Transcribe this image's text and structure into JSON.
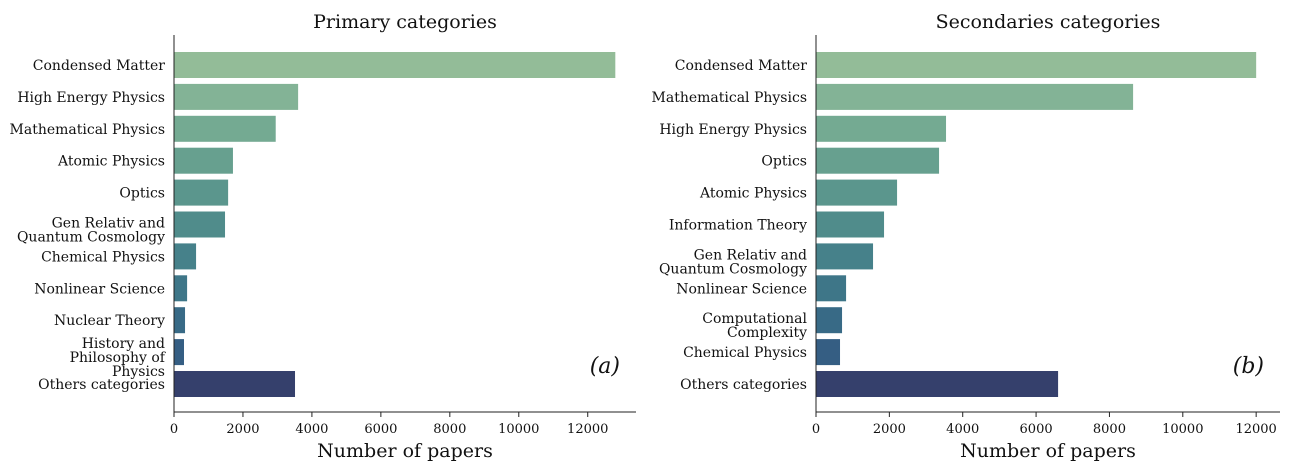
{
  "chart_data": [
    {
      "type": "barh",
      "title": "Primary categories",
      "xlabel": "Number of papers",
      "annotation": "(a)",
      "categories": [
        "Condensed Matter",
        "High Energy Physics",
        "Mathematical Physics",
        "Atomic Physics",
        "Optics",
        "Gen Relativ and\nQuantum Cosmology",
        "Chemical Physics",
        "Nonlinear Science",
        "Nuclear Theory",
        "History and\nPhilosophy of\nPhysics",
        "Others categories"
      ],
      "values": [
        12800,
        3600,
        2950,
        1710,
        1570,
        1480,
        640,
        380,
        320,
        290,
        3510
      ],
      "colors": [
        "#93bc98",
        "#83b396",
        "#74aa92",
        "#67a08f",
        "#5b968d",
        "#508c8b",
        "#46818a",
        "#3e7688",
        "#386a86",
        "#355e83",
        "#35406c"
      ],
      "xlim": [
        0,
        13400
      ],
      "xticks": [
        0,
        2000,
        4000,
        6000,
        8000,
        10000,
        12000
      ]
    },
    {
      "type": "barh",
      "title": "Secondaries categories",
      "xlabel": "Number of papers",
      "annotation": "(b)",
      "categories": [
        "Condensed Matter",
        "Mathematical Physics",
        "High Energy Physics",
        "Optics",
        "Atomic Physics",
        "Information Theory",
        "Gen Relativ and\nQuantum Cosmology",
        "Nonlinear Science",
        "Computational\nComplexity",
        "Chemical Physics",
        "Others categories"
      ],
      "values": [
        12000,
        8645,
        3545,
        3355,
        2210,
        1855,
        1555,
        820,
        710,
        655,
        6600
      ],
      "colors": [
        "#93bc98",
        "#83b396",
        "#74aa92",
        "#67a08f",
        "#5b968d",
        "#508c8b",
        "#46818a",
        "#3e7688",
        "#386a86",
        "#355e83",
        "#35406c"
      ],
      "xlim": [
        0,
        12650
      ],
      "xticks": [
        0,
        2000,
        4000,
        6000,
        8000,
        10000,
        12000
      ]
    }
  ]
}
